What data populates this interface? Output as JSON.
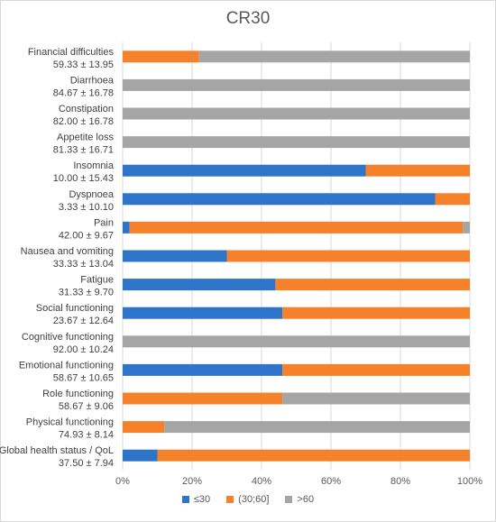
{
  "chart_data": {
    "type": "bar",
    "orientation": "horizontal",
    "stacked": "percent",
    "title": "CR30",
    "categories": [
      {
        "name": "Financial difficulties",
        "stat": "59.33 ± 13.95"
      },
      {
        "name": "Diarrhoea",
        "stat": "84.67 ± 16.78"
      },
      {
        "name": "Constipation",
        "stat": "82.00 ± 16.78"
      },
      {
        "name": "Appetite loss",
        "stat": "81.33 ± 16.71"
      },
      {
        "name": "Insomnia",
        "stat": "10.00 ± 15.43"
      },
      {
        "name": "Dyspnoea",
        "stat": "3.33 ± 10.10"
      },
      {
        "name": "Pain",
        "stat": "42.00 ± 9.67"
      },
      {
        "name": "Nausea and vomiting",
        "stat": "33.33 ± 13.04"
      },
      {
        "name": "Fatigue",
        "stat": "31.33 ± 9.70"
      },
      {
        "name": "Social functioning",
        "stat": "23.67 ± 12.64"
      },
      {
        "name": "Cognitive functioning",
        "stat": "92.00 ± 10.24"
      },
      {
        "name": "Emotional functioning",
        "stat": "58.67 ± 10.65"
      },
      {
        "name": "Role functioning",
        "stat": "58.67 ± 9.06"
      },
      {
        "name": "Physical functioning",
        "stat": "74.93 ± 8.14"
      },
      {
        "name": "Global health status / QoL",
        "stat": "37.50 ± 7.94"
      }
    ],
    "series": [
      {
        "name": "≤30",
        "color": "#2e75c9",
        "values": [
          0,
          0,
          0,
          0,
          70,
          90,
          2,
          30,
          44,
          46,
          0,
          46,
          0,
          0,
          10
        ]
      },
      {
        "name": "(30;60]",
        "color": "#f5822a",
        "values": [
          22,
          0,
          0,
          0,
          30,
          10,
          96,
          70,
          56,
          54,
          0,
          54,
          46,
          12,
          90
        ]
      },
      {
        "name": ">60",
        "color": "#a5a5a5",
        "values": [
          78,
          100,
          100,
          100,
          0,
          0,
          2,
          0,
          0,
          0,
          100,
          0,
          54,
          88,
          0
        ]
      }
    ],
    "xlim": [
      0,
      100
    ],
    "x_ticks": [
      "0%",
      "20%",
      "40%",
      "60%",
      "80%",
      "100%"
    ],
    "grid": "vertical",
    "legend_position": "bottom"
  }
}
